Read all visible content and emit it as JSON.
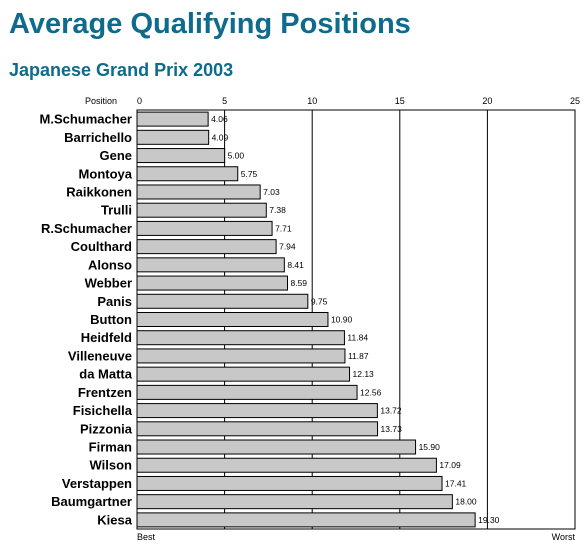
{
  "title": "Average Qualifying Positions",
  "subtitle": "Japanese Grand Prix 2003",
  "colors": {
    "title": "#0e6b8c",
    "bar_fill": "#c8c8c8",
    "bar_stroke": "#000000"
  },
  "chart_data": {
    "type": "bar",
    "orientation": "horizontal",
    "title": "Average Qualifying Positions",
    "subtitle": "Japanese Grand Prix 2003",
    "xlabel": "Position",
    "x_min_label": "Best",
    "x_max_label": "Worst",
    "xlim": [
      0,
      25
    ],
    "xticks": [
      0,
      5,
      10,
      15,
      20,
      25
    ],
    "grid": true,
    "categories": [
      "M.Schumacher",
      "Barrichello",
      "Gene",
      "Montoya",
      "Raikkonen",
      "Trulli",
      "R.Schumacher",
      "Coulthard",
      "Alonso",
      "Webber",
      "Panis",
      "Button",
      "Heidfeld",
      "Villeneuve",
      "da Matta",
      "Frentzen",
      "Fisichella",
      "Pizzonia",
      "Firman",
      "Wilson",
      "Verstappen",
      "Baumgartner",
      "Kiesa"
    ],
    "values": [
      4.06,
      4.09,
      5.0,
      5.75,
      7.03,
      7.38,
      7.71,
      7.94,
      8.41,
      8.59,
      9.75,
      10.9,
      11.84,
      11.87,
      12.13,
      12.56,
      13.72,
      13.73,
      15.9,
      17.09,
      17.41,
      18.0,
      19.3
    ],
    "value_labels": [
      "4.06",
      "4.09",
      "5.00",
      "5.75",
      "7.03",
      "7.38",
      "7.71",
      "7.94",
      "8.41",
      "8.59",
      "9.75",
      "10.90",
      "11.84",
      "11.87",
      "12.13",
      "12.56",
      "13.72",
      "13.73",
      "15.90",
      "17.09",
      "17.41",
      "18.00",
      "19.30"
    ]
  }
}
